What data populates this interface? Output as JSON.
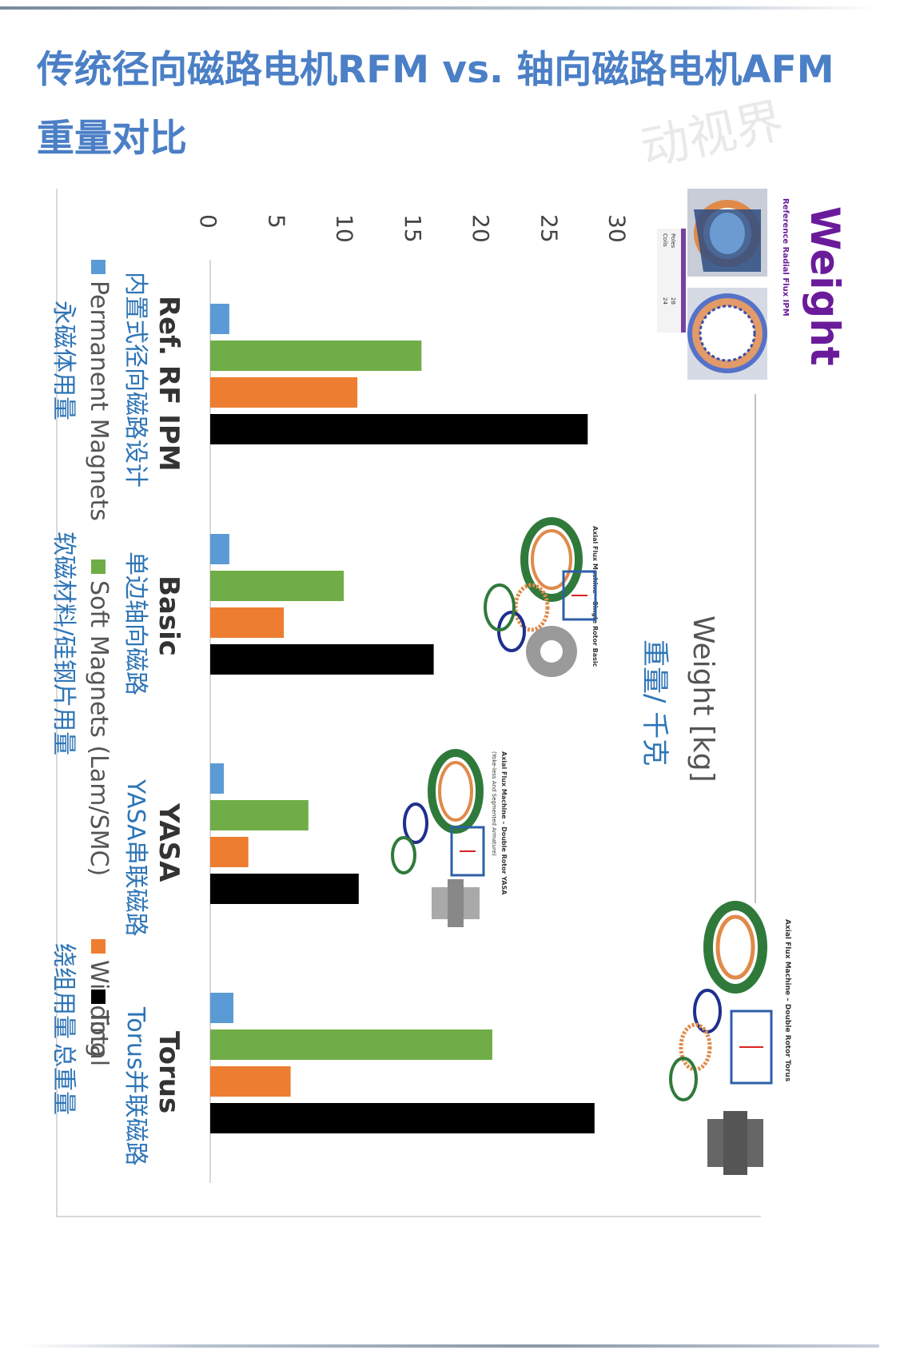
{
  "title": {
    "line1": "传统径向磁路电机RFM vs. 轴向磁路电机AFM",
    "line2": "重量对比"
  },
  "watermark": "动视界",
  "colors": {
    "title": "#4b7fc6",
    "permanent_magnets": "#5b9bd5",
    "soft_magnets": "#70ad47",
    "winding": "#ed7d31",
    "total": "#000000",
    "purple_heading": "#6a1b9a",
    "annotation_blue": "#2e75b6"
  },
  "heading": {
    "weight_word": "Weight",
    "subtitle": "Reference Radial Flux IPM",
    "table_rows": [
      {
        "label": "Poles",
        "value": "28"
      },
      {
        "label": "Coils",
        "value": "24"
      }
    ]
  },
  "inset_labels": {
    "basic": "Axial Flux Machine – Single Rotor Basic",
    "yasa_1": "Axial Flux Machine – Double Rotor YASA",
    "yasa_2": "(Yoke-less And Segmented Armature)",
    "torus": "Axial Flux Machine – Double Rotor Torus"
  },
  "chart_data": {
    "type": "bar",
    "orientation": "vertical, figure rotated 90° clockwise",
    "categories": [
      "Ref. RF IPM",
      "Basic",
      "YASA",
      "Torus"
    ],
    "category_annotations": [
      "内置式径向磁路设计",
      "单边轴向磁路",
      "YASA串联磁路",
      "Torus并联磁路"
    ],
    "series": [
      {
        "name": "Permanent Magnets",
        "annotation": "永磁体用量",
        "values": [
          1.4,
          1.4,
          1.0,
          1.7
        ]
      },
      {
        "name": "Soft Magnets (Lam/SMC)",
        "annotation": "软磁材料/硅钢片用量",
        "values": [
          15.5,
          9.8,
          7.2,
          20.7
        ]
      },
      {
        "name": "Winding",
        "annotation": "绕组用量",
        "values": [
          10.8,
          5.4,
          2.8,
          5.9
        ]
      },
      {
        "name": "Total",
        "annotation": "总重量",
        "values": [
          27.7,
          16.4,
          10.9,
          28.2
        ]
      }
    ],
    "ylabel": "Weight [kg]",
    "ylabel_annotation": "重量/ 千克",
    "ylim": [
      0,
      30
    ],
    "yticks": [
      "0",
      "5",
      "10",
      "15",
      "20",
      "25",
      "30"
    ],
    "grid": false,
    "legend": "bottom"
  }
}
